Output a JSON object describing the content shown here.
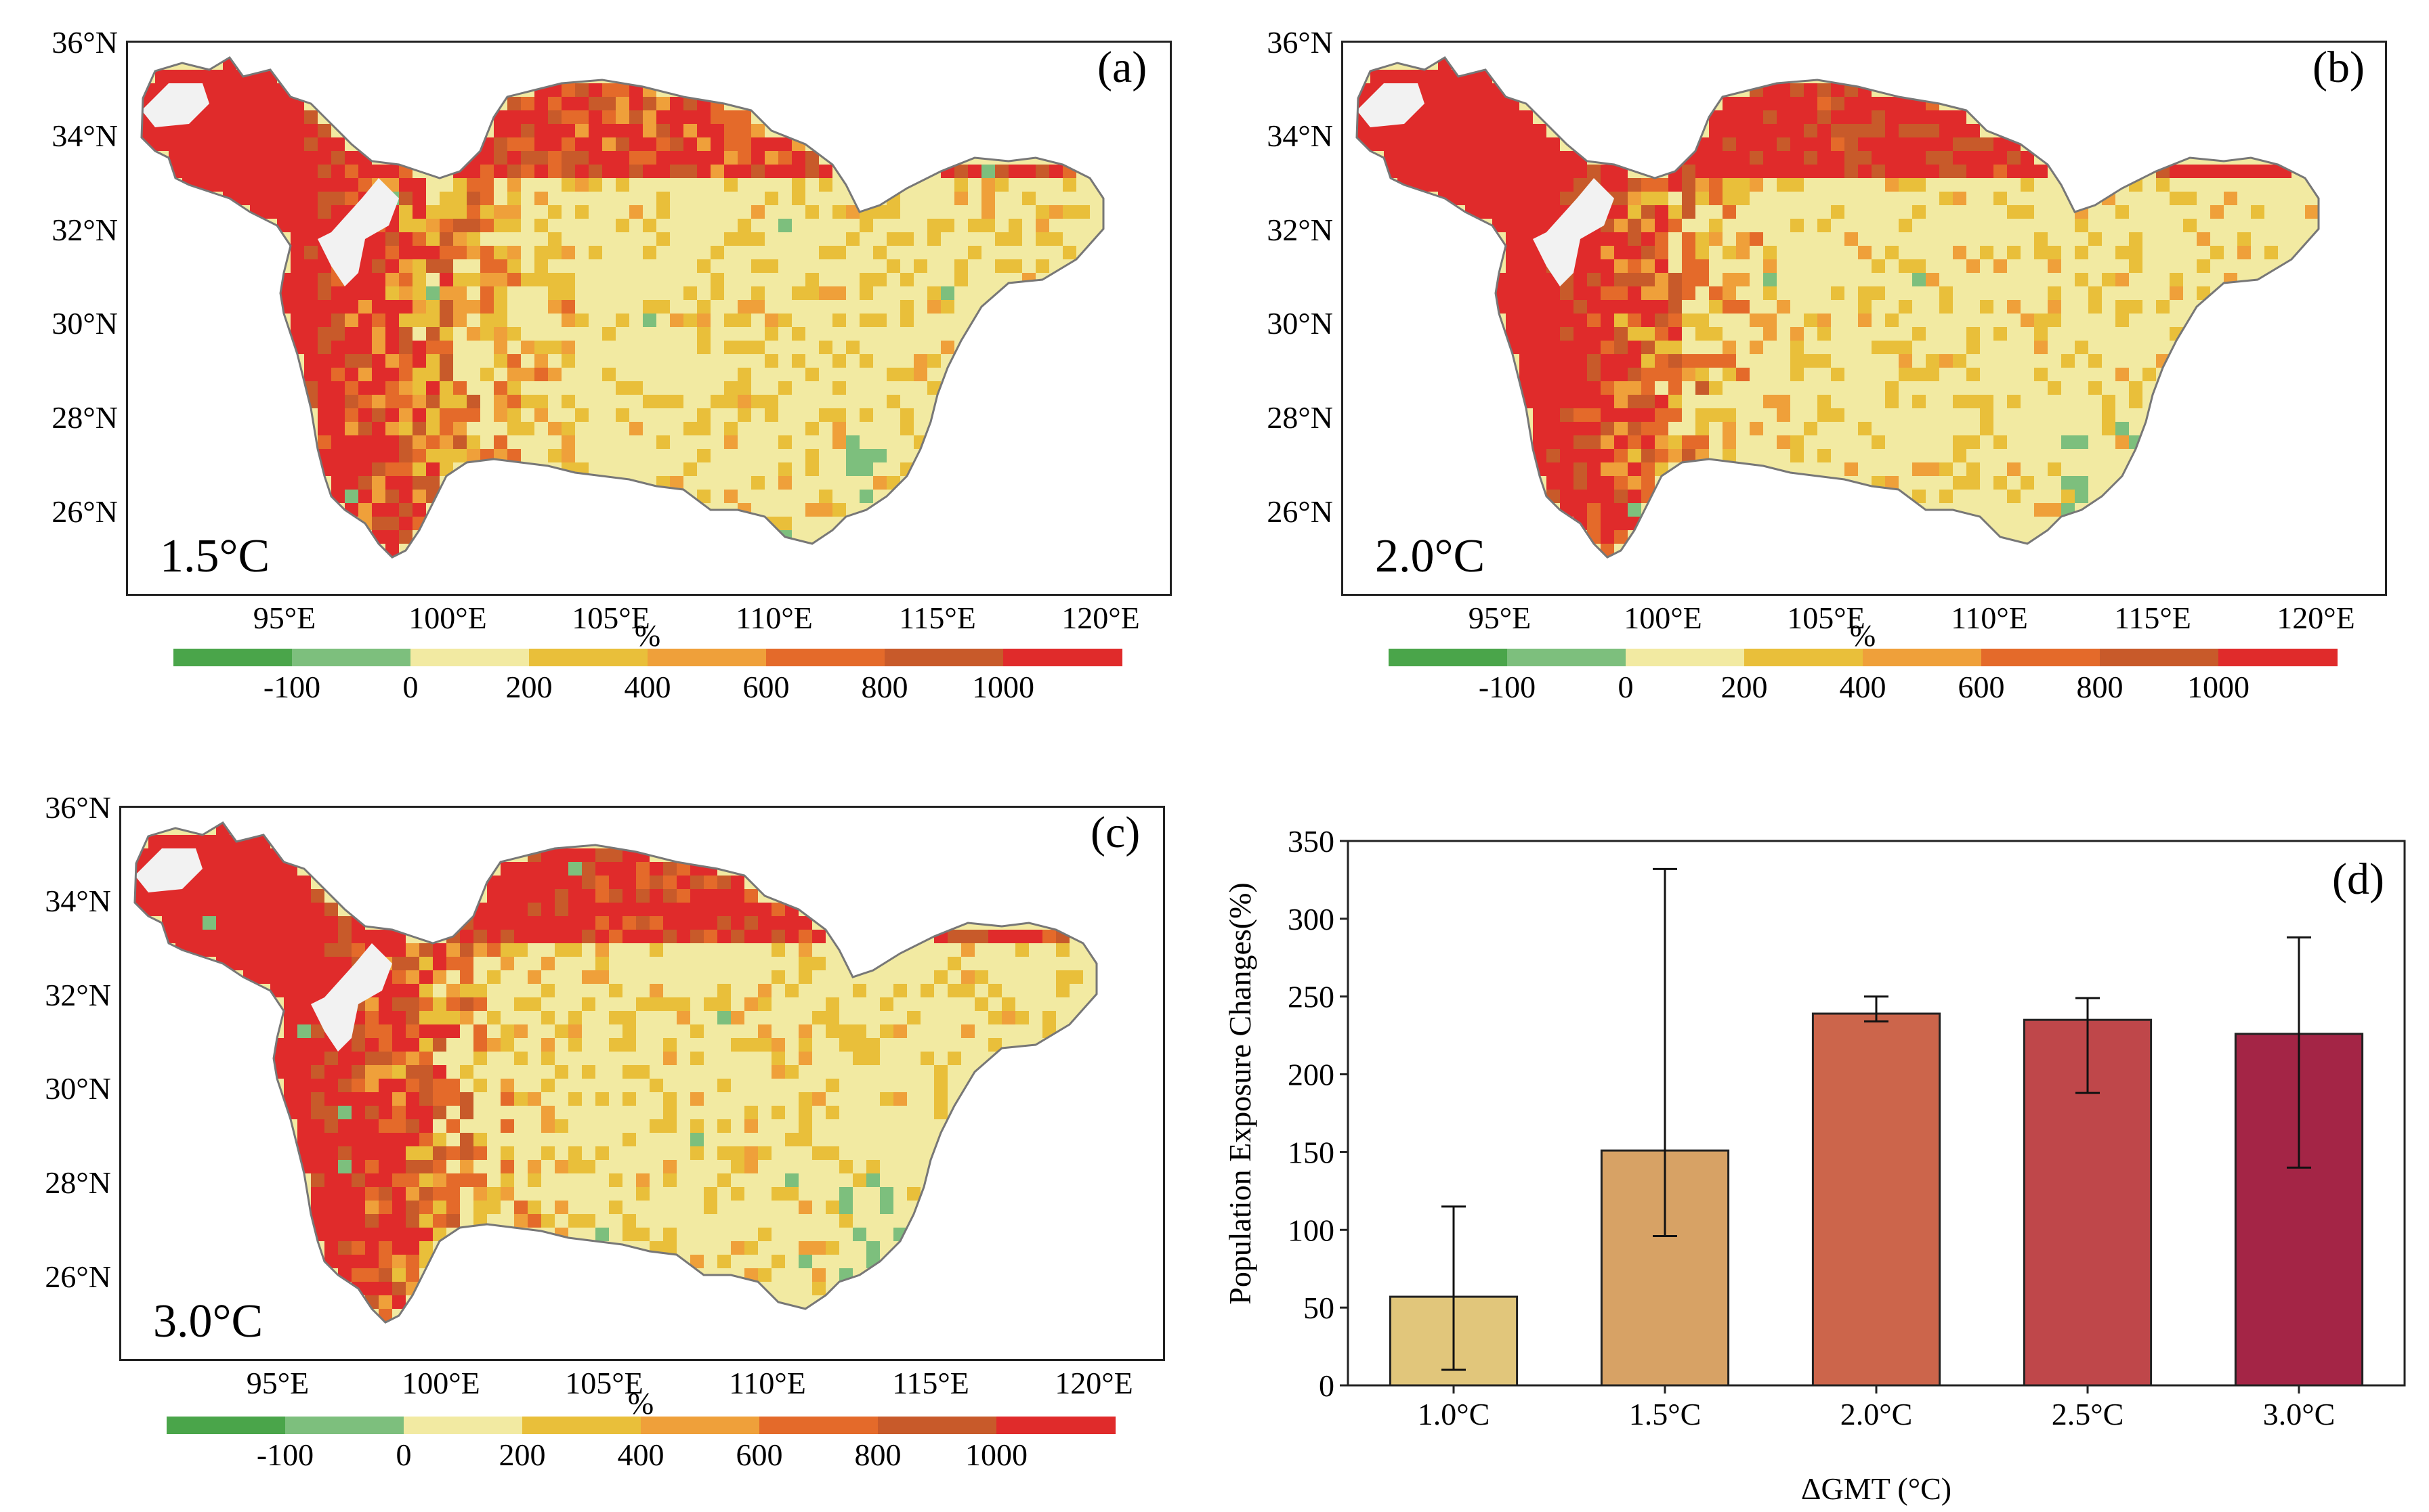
{
  "colors": {
    "bins": [
      "#4aa54a",
      "#7dbf7d",
      "#f2eaa2",
      "#e9bf3a",
      "#efa03a",
      "#e46a2a",
      "#c85a2a",
      "#e02b2b"
    ],
    "bar_fills": [
      "#e1c67b",
      "#d7a265",
      "#cc654b",
      "#bf474a",
      "#a42546"
    ],
    "land_base": "#f2eaa2",
    "no_data": "#f2f2f2"
  },
  "maps": [
    {
      "letter": "(a)",
      "temperature": "1.5°C"
    },
    {
      "letter": "(b)",
      "temperature": "2.0°C"
    },
    {
      "letter": "(c)",
      "temperature": "3.0°C"
    }
  ],
  "map_axes": {
    "lat_ticks": [
      "36°N",
      "34°N",
      "32°N",
      "30°N",
      "28°N",
      "26°N"
    ],
    "lon_ticks": [
      "95°E",
      "100°E",
      "105°E",
      "110°E",
      "115°E",
      "120°E"
    ]
  },
  "colorbar": {
    "unit": "%",
    "labels": [
      "-100",
      "0",
      "200",
      "400",
      "600",
      "800",
      "1000"
    ]
  },
  "chart_data": {
    "type": "bar",
    "panel_letter": "(d)",
    "categories": [
      "1.0°C",
      "1.5°C",
      "2.0°C",
      "2.5°C",
      "3.0°C"
    ],
    "values": [
      57,
      151,
      239,
      235,
      226
    ],
    "error_low": [
      10,
      96,
      234,
      188,
      140
    ],
    "error_high": [
      115,
      332,
      250,
      249,
      288
    ],
    "xlabel": "ΔGMT (°C)",
    "ylabel": "Population Exposure Changes(%)",
    "ylim": [
      0,
      350
    ],
    "yticks": [
      0,
      50,
      100,
      150,
      200,
      250,
      300,
      350
    ]
  }
}
